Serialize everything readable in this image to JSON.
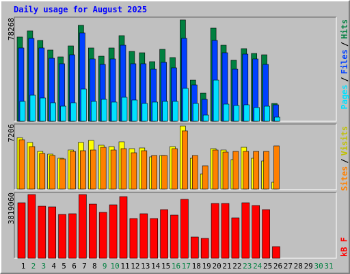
{
  "chart_data": [
    {
      "type": "bar",
      "title": "Daily usage for August 2025",
      "separator": "/",
      "ylim": [
        0,
        78268
      ],
      "yticks": [
        78268
      ],
      "grid": false,
      "series": [
        {
          "name": "Hits",
          "color": "#008040",
          "values": [
            65050,
            69810,
            62400,
            55000,
            49710,
            58170,
            74040,
            56590,
            50240,
            56590,
            66100,
            53940,
            52880,
            46010,
            55530,
            49180,
            78268,
            31730,
            21680,
            71920,
            58700,
            47070,
            56060,
            52360,
            51300,
            13750,
            0,
            0,
            0,
            0,
            0
          ]
        },
        {
          "name": "Files",
          "color": "#0040ff",
          "values": [
            56590,
            63990,
            56590,
            48650,
            44420,
            51300,
            68220,
            48120,
            43890,
            48120,
            58700,
            44420,
            44420,
            40190,
            45480,
            41250,
            63990,
            28030,
            16920,
            62400,
            52880,
            40190,
            51830,
            48120,
            43890,
            12690,
            0,
            0,
            0,
            0,
            0
          ]
        },
        {
          "name": "Pages",
          "color": "#00e0ff",
          "values": [
            15340,
            20100,
            17980,
            14280,
            11630,
            14280,
            24860,
            15340,
            16920,
            14810,
            18510,
            16390,
            13750,
            14810,
            15340,
            15340,
            25380,
            13750,
            4760,
            31730,
            13220,
            12160,
            12690,
            10580,
            11630,
            3170,
            0,
            0,
            0,
            0,
            0
          ]
        }
      ]
    },
    {
      "type": "bar",
      "separator": "/",
      "ylim": [
        0,
        7206
      ],
      "yticks": [
        7206
      ],
      "grid": false,
      "series": [
        {
          "name": "Visits",
          "color": "#ffff00",
          "values": [
            5875,
            5326,
            4308,
            3995,
            3525,
            4465,
            5326,
            5561,
            5013,
            4856,
            5405,
            4621,
            4700,
            3682,
            3838,
            4856,
            7206,
            3525,
            1723,
            4621,
            4465,
            3368,
            4778,
            3525,
            3212,
            783,
            0,
            0,
            0,
            0,
            0
          ]
        },
        {
          "name": "Sites",
          "color": "#ff8000",
          "values": [
            5640,
            4856,
            4073,
            3838,
            3447,
            4308,
            4386,
            4465,
            4778,
            4465,
            4621,
            4151,
            4386,
            3838,
            3838,
            4621,
            6658,
            3838,
            2663,
            4465,
            4230,
            4308,
            4308,
            4308,
            4308,
            4935,
            0,
            0,
            0,
            0,
            0
          ]
        }
      ]
    },
    {
      "type": "bar",
      "ylim": [
        0,
        3819060
      ],
      "yticks": [
        3819060
      ],
      "grid": false,
      "categories": [
        "1",
        "2",
        "3",
        "4",
        "5",
        "6",
        "7",
        "8",
        "9",
        "10",
        "11",
        "12",
        "13",
        "14",
        "15",
        "16",
        "17",
        "18",
        "19",
        "20",
        "21",
        "22",
        "23",
        "24",
        "25",
        "26",
        "27",
        "28",
        "29",
        "30",
        "31"
      ],
      "category_colors": [
        "#000000",
        "#008040",
        "#008040",
        "#000000",
        "#000000",
        "#000000",
        "#000000",
        "#000000",
        "#008040",
        "#008040",
        "#000000",
        "#000000",
        "#000000",
        "#000000",
        "#000000",
        "#008040",
        "#008040",
        "#000000",
        "#000000",
        "#000000",
        "#000000",
        "#000000",
        "#008040",
        "#008040",
        "#000000",
        "#000000",
        "#000000",
        "#000000",
        "#000000",
        "#008040",
        "#008040"
      ],
      "series": [
        {
          "name": "kB F",
          "color": "#ff0000",
          "values": [
            3326260,
            3819060,
            3120940,
            3079880,
            2628160,
            2669230,
            3819060,
            3244140,
            2751360,
            3203070,
            3695850,
            2381770,
            2669230,
            2381770,
            2915620,
            2587100,
            3531590,
            1273020,
            1190890,
            3285200,
            3285200,
            2422840,
            3326260,
            3162010,
            2915620,
            698110,
            0,
            0,
            0,
            0,
            0
          ]
        }
      ]
    }
  ]
}
